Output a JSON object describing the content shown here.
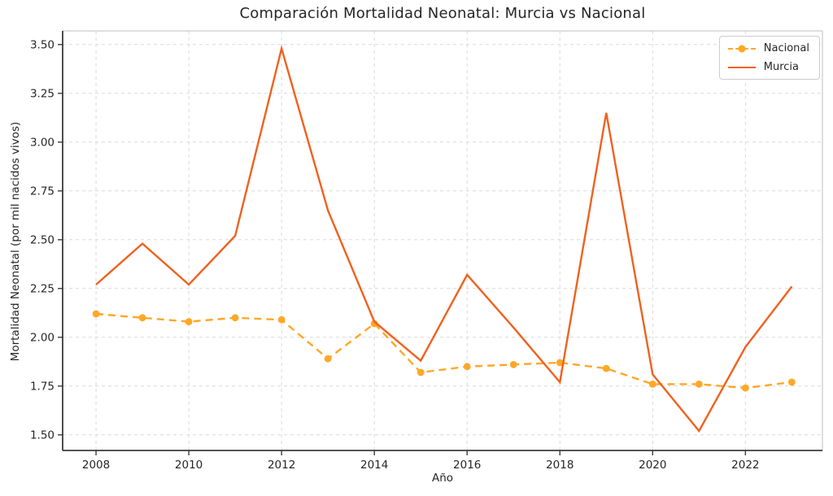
{
  "chart_data": {
    "type": "line",
    "title": "Comparación Mortalidad Neonatal: Murcia vs Nacional",
    "xlabel": "Año",
    "ylabel": "Mortalidad Neonatal (por mil nacidos vivos)",
    "grid": true,
    "legend_position": "top-right",
    "xlim": [
      2007.28,
      2023.66
    ],
    "ylim": [
      1.42,
      3.57
    ],
    "x": [
      2008,
      2009,
      2010,
      2011,
      2012,
      2013,
      2014,
      2015,
      2016,
      2017,
      2018,
      2019,
      2020,
      2021,
      2022,
      2023
    ],
    "x_ticks": [
      2008,
      2010,
      2012,
      2014,
      2016,
      2018,
      2020,
      2022
    ],
    "x_tick_labels": [
      "2008",
      "2010",
      "2012",
      "2014",
      "2016",
      "2018",
      "2020",
      "2022"
    ],
    "y_ticks": [
      1.5,
      1.75,
      2.0,
      2.25,
      2.5,
      2.75,
      3.0,
      3.25,
      3.5
    ],
    "y_tick_labels": [
      "1.50",
      "1.75",
      "2.00",
      "2.25",
      "2.50",
      "2.75",
      "3.00",
      "3.25",
      "3.50"
    ],
    "series": [
      {
        "name": "Nacional",
        "color": "#FFA726",
        "style": "dashed",
        "marker": "circle",
        "values": [
          2.12,
          2.1,
          2.08,
          2.1,
          2.09,
          1.89,
          2.07,
          1.82,
          1.85,
          1.86,
          1.87,
          1.84,
          1.76,
          1.76,
          1.74,
          1.77
        ]
      },
      {
        "name": "Murcia",
        "color": "#F0611E",
        "style": "solid",
        "marker": "none",
        "values": [
          2.27,
          2.48,
          2.27,
          2.52,
          3.48,
          2.65,
          2.08,
          1.88,
          2.32,
          2.05,
          1.77,
          3.15,
          1.81,
          1.52,
          1.95,
          2.26
        ]
      }
    ],
    "colors": {
      "grid": "#d9d9d9",
      "spine_dark": "#3b3b3b",
      "spine_light": "#c9c9c9",
      "text": "#262626"
    }
  }
}
